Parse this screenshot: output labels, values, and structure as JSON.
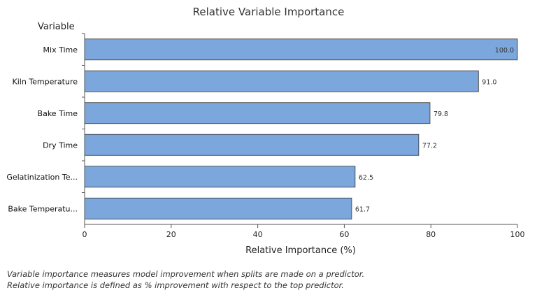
{
  "chart_data": {
    "type": "bar",
    "orientation": "horizontal",
    "title": "Relative Variable Importance",
    "ylabel": "Variable",
    "xlabel": "Relative Importance (%)",
    "xlim": [
      0,
      100
    ],
    "xticks": [
      0,
      20,
      40,
      60,
      80,
      100
    ],
    "categories": [
      "Mix Time",
      "Kiln Temperature",
      "Bake Time",
      "Dry Time",
      "Gelatinization Te...",
      "Bake Temperatu..."
    ],
    "values": [
      100.0,
      91.0,
      79.8,
      77.2,
      62.5,
      61.7
    ],
    "data_labels": [
      "100.0",
      "91.0",
      "79.8",
      "77.2",
      "62.5",
      "61.7"
    ],
    "bar_color": "#7ba7dc",
    "bar_edge_color": "#333333",
    "grid": false
  },
  "footnotes": [
    "Variable importance measures model improvement when splits are made on a predictor.",
    "Relative importance is defined as % improvement with respect to the top predictor."
  ]
}
